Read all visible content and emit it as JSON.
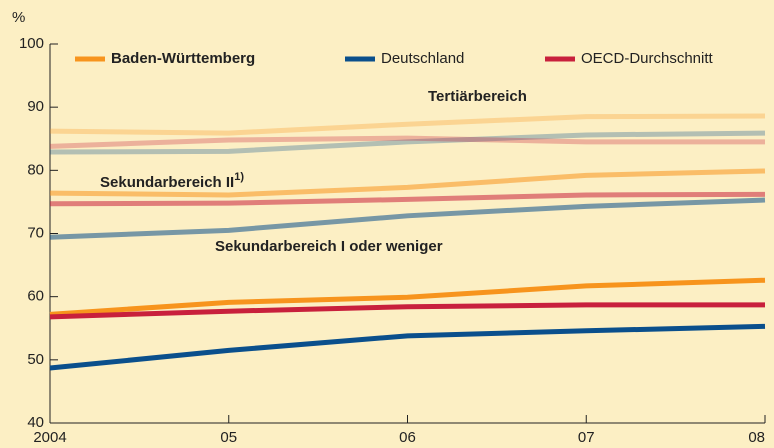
{
  "chart_data": {
    "type": "line",
    "ylabel": "%",
    "categories": [
      "2004",
      "05",
      "06",
      "07",
      "08"
    ],
    "ylim": [
      40,
      100
    ],
    "yticks": [
      40,
      50,
      60,
      70,
      80,
      90,
      100
    ],
    "series": [
      {
        "name": "Baden-Württemberg",
        "color": "#f7941d"
      },
      {
        "name": "Deutschland",
        "color": "#0a4f8c"
      },
      {
        "name": "OECD-Durchschnitt",
        "color": "#c8203c"
      }
    ],
    "groups": [
      {
        "label": "Tertiärbereich",
        "opacity": 0.3,
        "values": [
          [
            86.2,
            85.9,
            87.3,
            88.5,
            88.6
          ],
          [
            82.9,
            83.0,
            84.5,
            85.6,
            85.9
          ],
          [
            83.8,
            84.8,
            85.1,
            84.5,
            84.5
          ]
        ]
      },
      {
        "label": "Sekundarbereich II",
        "footnote": "1)",
        "opacity": 0.55,
        "values": [
          [
            76.4,
            76.1,
            77.3,
            79.2,
            79.9
          ],
          [
            69.4,
            70.5,
            72.8,
            74.3,
            75.3
          ],
          [
            74.7,
            74.8,
            75.4,
            76.1,
            76.2
          ]
        ]
      },
      {
        "label": "Sekundarbereich I oder weniger",
        "opacity": 1,
        "values": [
          [
            57.2,
            59.1,
            59.9,
            61.7,
            62.6
          ],
          [
            48.7,
            51.5,
            53.8,
            54.6,
            55.3
          ],
          [
            56.8,
            57.7,
            58.4,
            58.7,
            58.7
          ]
        ]
      }
    ]
  }
}
